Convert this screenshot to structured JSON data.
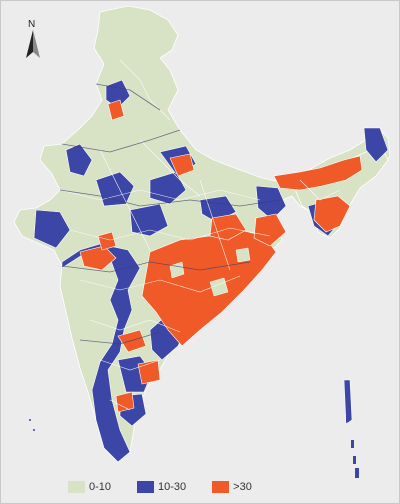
{
  "map": {
    "compass_label": "N",
    "colors": {
      "background": "#ececec",
      "low": "#d7e3c4",
      "mid": "#3c46a6",
      "high": "#f05a28",
      "boundary": "#ffffff"
    },
    "legend": [
      {
        "label": "0-10",
        "color": "#d7e3c4"
      },
      {
        "label": "10-30",
        "color": "#3c46a6"
      },
      {
        "label": ">30",
        "color": "#f05a28"
      }
    ]
  }
}
